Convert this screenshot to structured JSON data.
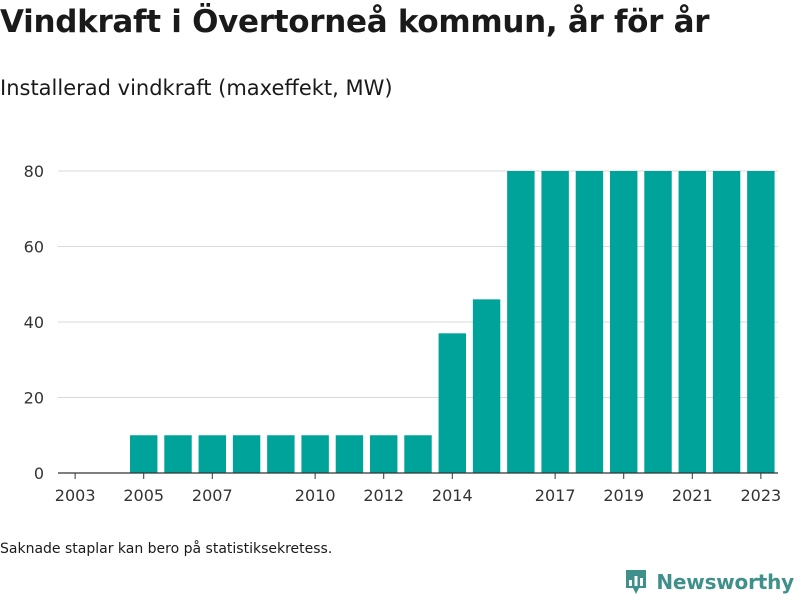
{
  "header": {
    "title": "Vindkraft i Övertorneå kommun, år för år",
    "subtitle": "Installerad vindkraft (maxeffekt, MW)"
  },
  "footer": {
    "note": "Saknade staplar kan bero på statistiksekretess.",
    "brand": "Newsworthy"
  },
  "colors": {
    "bar": "#00a39a",
    "grid": "#d9d9d9",
    "axis": "#333333",
    "brand": "#3f8f8a"
  },
  "icons": {
    "brand_logo": "bar-chart-badge-icon"
  },
  "chart_data": {
    "type": "bar",
    "title": "Vindkraft i Övertorneå kommun, år för år",
    "subtitle": "Installerad vindkraft (maxeffekt, MW)",
    "xlabel": "",
    "ylabel": "",
    "categories": [
      "2003",
      "2004",
      "2005",
      "2006",
      "2007",
      "2008",
      "2009",
      "2010",
      "2011",
      "2012",
      "2013",
      "2014",
      "2015",
      "2016",
      "2017",
      "2018",
      "2019",
      "2020",
      "2021",
      "2022",
      "2023"
    ],
    "values": [
      null,
      null,
      10,
      10,
      10,
      10,
      10,
      10,
      10,
      10,
      10,
      37,
      46,
      80,
      80,
      80,
      80,
      80,
      80,
      80,
      80
    ],
    "x_tick_labels": [
      "2003",
      "2005",
      "2007",
      "2010",
      "2012",
      "2014",
      "2017",
      "2019",
      "2021",
      "2023"
    ],
    "y_ticks": [
      0,
      20,
      40,
      60,
      80
    ],
    "ylim": [
      0,
      80
    ],
    "grid": true,
    "legend": "none"
  }
}
